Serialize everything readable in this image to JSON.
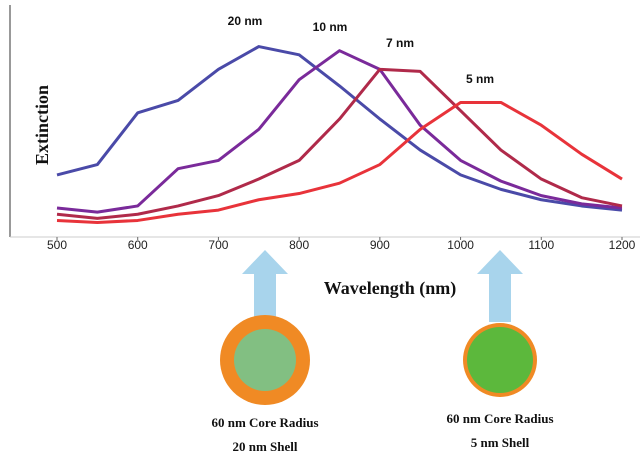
{
  "chart_data": {
    "type": "line",
    "x_label": "Wavelength (nm)",
    "y_label": "Extinction",
    "x": [
      500,
      550,
      600,
      650,
      700,
      750,
      800,
      850,
      900,
      950,
      1000,
      1050,
      1100,
      1150,
      1200
    ],
    "xlim": [
      500,
      1200
    ],
    "xticks": [
      500,
      600,
      700,
      800,
      900,
      1000,
      1100,
      1200
    ],
    "ylim": [
      0,
      1
    ],
    "series": [
      {
        "name": "20 nm",
        "color": "#4a4aa8",
        "values": [
          0.3,
          0.35,
          0.6,
          0.66,
          0.81,
          0.92,
          0.88,
          0.73,
          0.57,
          0.42,
          0.3,
          0.23,
          0.18,
          0.15,
          0.13
        ]
      },
      {
        "name": "10 nm",
        "color": "#7a2a9a",
        "values": [
          0.14,
          0.12,
          0.15,
          0.33,
          0.37,
          0.52,
          0.76,
          0.9,
          0.81,
          0.54,
          0.37,
          0.27,
          0.2,
          0.16,
          0.14
        ]
      },
      {
        "name": "7 nm",
        "color": "#b02a4a",
        "values": [
          0.11,
          0.09,
          0.11,
          0.15,
          0.2,
          0.28,
          0.37,
          0.57,
          0.81,
          0.8,
          0.61,
          0.42,
          0.28,
          0.19,
          0.15
        ]
      },
      {
        "name": "5 nm",
        "color": "#e8333a",
        "values": [
          0.08,
          0.07,
          0.08,
          0.11,
          0.13,
          0.18,
          0.21,
          0.26,
          0.35,
          0.52,
          0.65,
          0.65,
          0.54,
          0.4,
          0.28
        ]
      }
    ]
  },
  "diagram": {
    "particles": [
      {
        "lines": [
          "60 nm Core Radius",
          "20 nm Shell"
        ]
      },
      {
        "lines": [
          "60 nm Core Radius",
          "5 nm Shell"
        ]
      }
    ]
  }
}
